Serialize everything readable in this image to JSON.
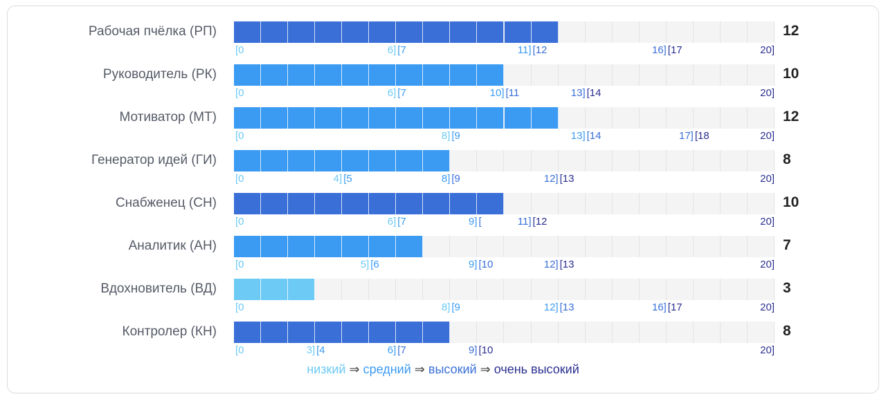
{
  "colors": {
    "low": "#6ccaf5",
    "medium": "#3b9bf2",
    "high": "#3a6fd8",
    "very_high": "#2a2f8f",
    "track": "#f4f4f4",
    "label": "#555a66"
  },
  "chart_data": {
    "type": "bar",
    "scale_max": 20,
    "categories": [
      "Рабочая пчёлка (РП)",
      "Руководитель (РК)",
      "Мотиватор (МТ)",
      "Генератор идей (ГИ)",
      "Снабженец (СН)",
      "Аналитик (АН)",
      "Вдохновитель (ВД)",
      "Контролер (КН)"
    ],
    "values": [
      12,
      10,
      12,
      8,
      10,
      7,
      3,
      8
    ],
    "value_labels": [
      "12",
      "10",
      "12",
      "8",
      "10",
      "7",
      "3",
      "8"
    ],
    "bar_levels": [
      "high",
      "medium",
      "medium",
      "medium",
      "high",
      "medium",
      "low",
      "high"
    ],
    "scales": [
      [
        {
          "v": 0,
          "t": "[0",
          "lvl": "low"
        },
        {
          "v": 6,
          "t": "6]",
          "lvl": "low"
        },
        {
          "v": 6,
          "t": "[7",
          "lvl": "medium"
        },
        {
          "v": 11,
          "t": "11]",
          "lvl": "medium"
        },
        {
          "v": 11,
          "t": "[12",
          "lvl": "high"
        },
        {
          "v": 16,
          "t": "16]",
          "lvl": "high"
        },
        {
          "v": 16,
          "t": "[17",
          "lvl": "very_high"
        },
        {
          "v": 20,
          "t": "20]",
          "lvl": "very_high"
        }
      ],
      [
        {
          "v": 0,
          "t": "[0",
          "lvl": "low"
        },
        {
          "v": 6,
          "t": "6]",
          "lvl": "low"
        },
        {
          "v": 6,
          "t": "[7",
          "lvl": "medium"
        },
        {
          "v": 10,
          "t": "10]",
          "lvl": "medium"
        },
        {
          "v": 10,
          "t": "[11",
          "lvl": "high"
        },
        {
          "v": 13,
          "t": "13]",
          "lvl": "high"
        },
        {
          "v": 13,
          "t": "[14",
          "lvl": "very_high"
        },
        {
          "v": 20,
          "t": "20]",
          "lvl": "very_high"
        }
      ],
      [
        {
          "v": 0,
          "t": "[0",
          "lvl": "low"
        },
        {
          "v": 8,
          "t": "8]",
          "lvl": "low"
        },
        {
          "v": 8,
          "t": "[9",
          "lvl": "medium"
        },
        {
          "v": 13,
          "t": "13]",
          "lvl": "medium"
        },
        {
          "v": 13,
          "t": "[14",
          "lvl": "high"
        },
        {
          "v": 17,
          "t": "17]",
          "lvl": "high"
        },
        {
          "v": 17,
          "t": "[18",
          "lvl": "very_high"
        },
        {
          "v": 20,
          "t": "20]",
          "lvl": "very_high"
        }
      ],
      [
        {
          "v": 0,
          "t": "[0",
          "lvl": "low"
        },
        {
          "v": 4,
          "t": "4]",
          "lvl": "low"
        },
        {
          "v": 4,
          "t": "[5",
          "lvl": "medium"
        },
        {
          "v": 8,
          "t": "8]",
          "lvl": "medium"
        },
        {
          "v": 8,
          "t": "[9",
          "lvl": "high"
        },
        {
          "v": 12,
          "t": "12]",
          "lvl": "high"
        },
        {
          "v": 12,
          "t": "[13",
          "lvl": "very_high"
        },
        {
          "v": 20,
          "t": "20]",
          "lvl": "very_high"
        }
      ],
      [
        {
          "v": 0,
          "t": "[0",
          "lvl": "low"
        },
        {
          "v": 6,
          "t": "6]",
          "lvl": "low"
        },
        {
          "v": 6,
          "t": "[7",
          "lvl": "medium"
        },
        {
          "v": 9,
          "t": "9]",
          "lvl": "medium"
        },
        {
          "v": 9,
          "t": "[",
          "lvl": "high"
        },
        {
          "v": 11,
          "t": "11]",
          "lvl": "high"
        },
        {
          "v": 11,
          "t": "[12",
          "lvl": "very_high"
        },
        {
          "v": 20,
          "t": "20]",
          "lvl": "very_high"
        }
      ],
      [
        {
          "v": 0,
          "t": "[0",
          "lvl": "low"
        },
        {
          "v": 5,
          "t": "5]",
          "lvl": "low"
        },
        {
          "v": 5,
          "t": "[6",
          "lvl": "medium"
        },
        {
          "v": 9,
          "t": "9]",
          "lvl": "medium"
        },
        {
          "v": 9,
          "t": "[10",
          "lvl": "high"
        },
        {
          "v": 12,
          "t": "12]",
          "lvl": "high"
        },
        {
          "v": 12,
          "t": "[13",
          "lvl": "very_high"
        },
        {
          "v": 20,
          "t": "20]",
          "lvl": "very_high"
        }
      ],
      [
        {
          "v": 0,
          "t": "[0",
          "lvl": "low"
        },
        {
          "v": 8,
          "t": "8]",
          "lvl": "low"
        },
        {
          "v": 8,
          "t": "[9",
          "lvl": "medium"
        },
        {
          "v": 12,
          "t": "12]",
          "lvl": "medium"
        },
        {
          "v": 12,
          "t": "[13",
          "lvl": "high"
        },
        {
          "v": 16,
          "t": "16]",
          "lvl": "high"
        },
        {
          "v": 16,
          "t": "[17",
          "lvl": "very_high"
        },
        {
          "v": 20,
          "t": "20]",
          "lvl": "very_high"
        }
      ],
      [
        {
          "v": 0,
          "t": "[0",
          "lvl": "low"
        },
        {
          "v": 3,
          "t": "3]",
          "lvl": "low"
        },
        {
          "v": 3,
          "t": "[4",
          "lvl": "medium"
        },
        {
          "v": 6,
          "t": "6]",
          "lvl": "medium"
        },
        {
          "v": 6,
          "t": "[7",
          "lvl": "high"
        },
        {
          "v": 9,
          "t": "9]",
          "lvl": "high"
        },
        {
          "v": 9,
          "t": "[10",
          "lvl": "very_high"
        },
        {
          "v": 20,
          "t": "20]",
          "lvl": "very_high"
        }
      ]
    ],
    "legend": {
      "low": "низкий",
      "medium": "средний",
      "high": "высокий",
      "very_high": "очень высокий",
      "arrow": "⇒"
    }
  }
}
